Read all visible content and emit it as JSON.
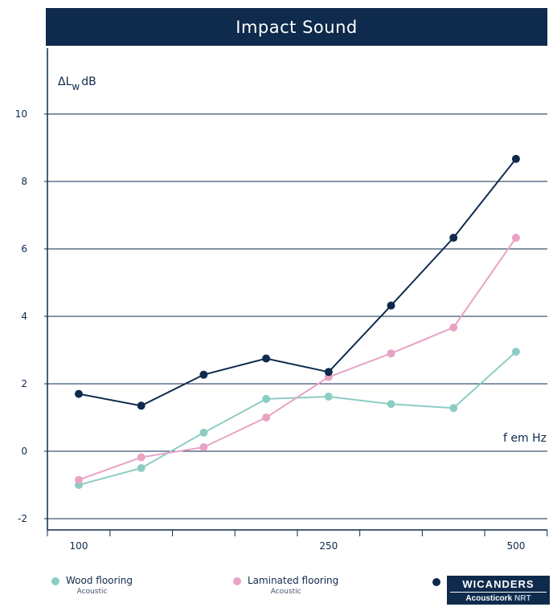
{
  "header": {
    "title": "Impact Sound"
  },
  "chart_data": {
    "type": "line",
    "title": "Impact Sound",
    "ylabel_parts": [
      "ΔL",
      "w",
      "dB"
    ],
    "xlabel": "f em Hz",
    "ylim": [
      -2,
      10
    ],
    "y_ticks": [
      "10",
      "8",
      "6",
      "4",
      "2",
      "0",
      "-2"
    ],
    "y_tick_values": [
      10,
      8,
      6,
      4,
      2,
      0,
      -2
    ],
    "x_tick_labels": [
      "100",
      "250",
      "500"
    ],
    "x": [
      "100",
      "125",
      "160",
      "200",
      "250",
      "315",
      "400",
      "500"
    ],
    "grid": false,
    "legend_position": "bottom",
    "series": [
      {
        "name": "Wood flooring",
        "subtitle": "Acoustic",
        "color": "#8ccdc3",
        "values": [
          -1.0,
          -0.5,
          0.55,
          1.55,
          1.62,
          1.4,
          1.28,
          2.95
        ]
      },
      {
        "name": "Laminated flooring",
        "subtitle": "Acoustic",
        "color": "#e8a2c4",
        "values": [
          -0.85,
          -0.18,
          0.12,
          1.0,
          2.2,
          2.9,
          3.67,
          6.33
        ]
      },
      {
        "name": "WICANDERS Acousticork NRT",
        "color": "#0e2a4c",
        "values": [
          1.7,
          1.35,
          2.27,
          2.75,
          2.35,
          4.32,
          6.33,
          8.67
        ]
      }
    ]
  },
  "legend": {
    "wood": {
      "label": "Wood flooring",
      "sub": "Acoustic"
    },
    "laminated": {
      "label": "Laminated flooring",
      "sub": "Acoustic"
    }
  },
  "brand": {
    "name": "WICANDERS",
    "product": "Acousticork",
    "suffix": "NRT"
  }
}
